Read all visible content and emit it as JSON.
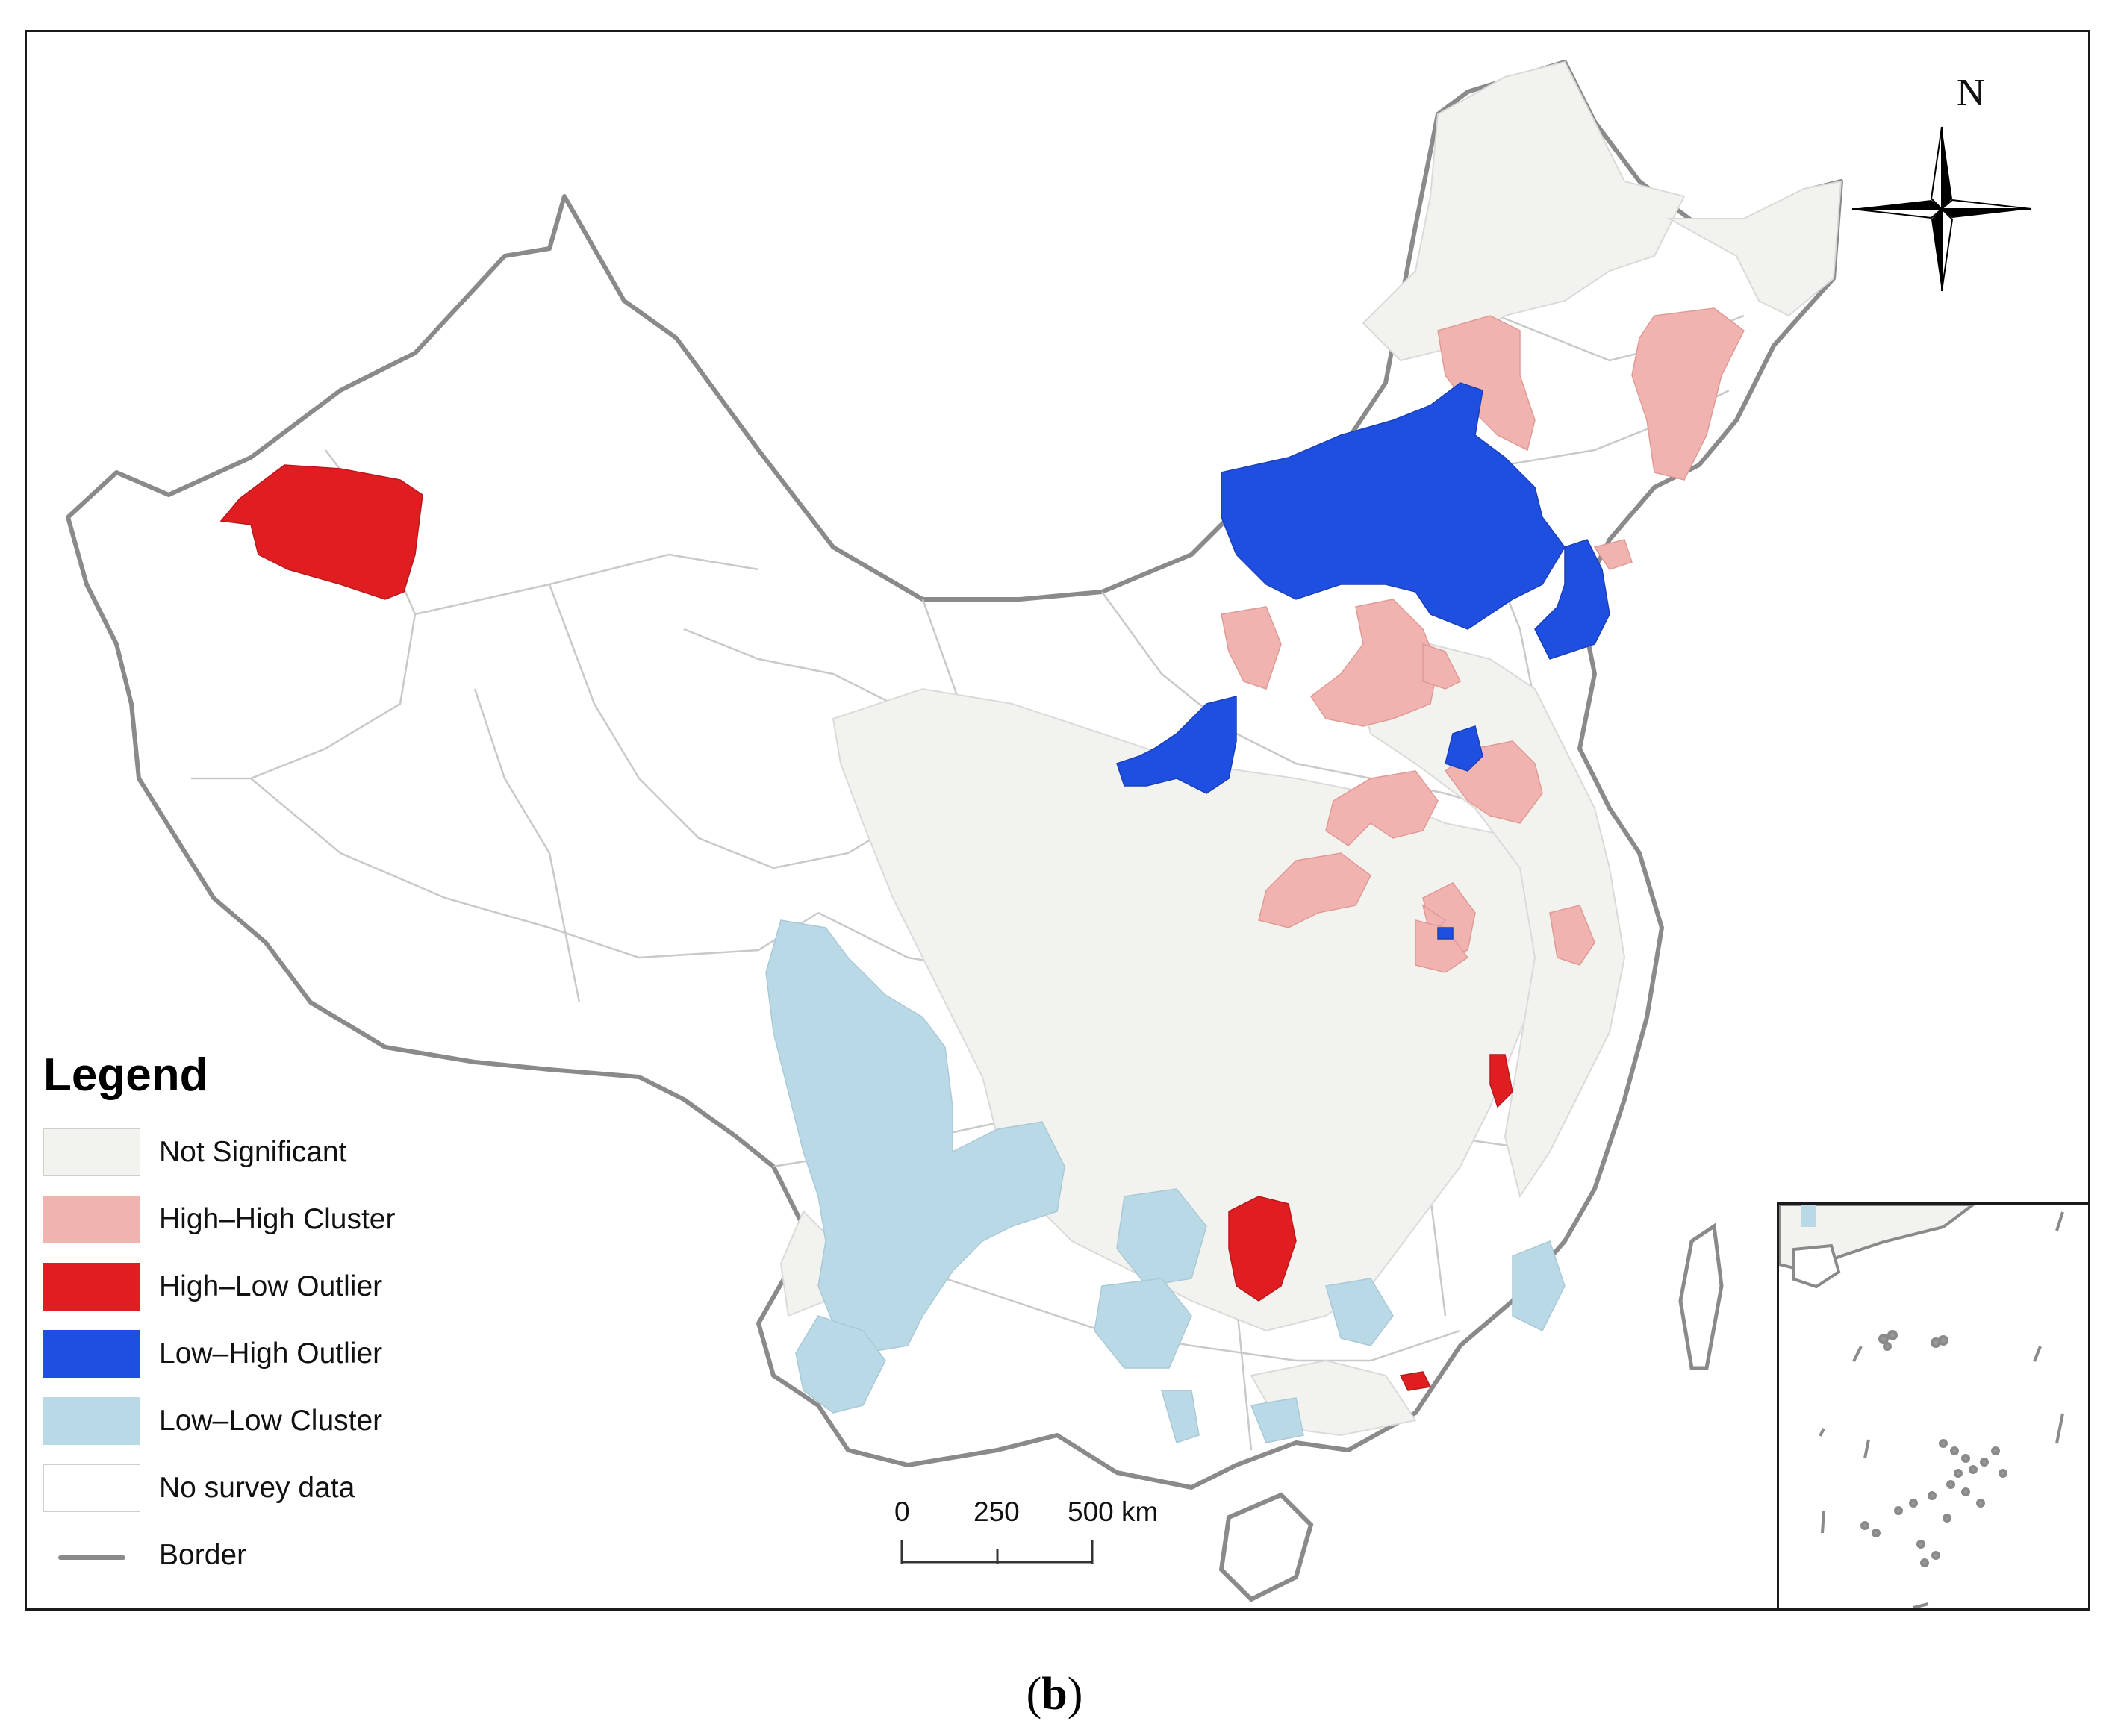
{
  "legend": {
    "title": "Legend",
    "items": [
      {
        "label": "Not Significant",
        "color": "#f2f3ee"
      },
      {
        "label": "High–High Cluster",
        "color": "#f1b3b0"
      },
      {
        "label": "High–Low Outlier",
        "color": "#e01e22"
      },
      {
        "label": "Low–High Outlier",
        "color": "#1f4fe0"
      },
      {
        "label": "Low–Low Cluster",
        "color": "#b9d9e6"
      },
      {
        "label": "No survey data",
        "color": "#ffffff"
      },
      {
        "label": "Border",
        "color": "#8a8a8a"
      }
    ]
  },
  "scale_bar": {
    "ticks": [
      "0",
      "250",
      "500 km"
    ]
  },
  "compass": {
    "north": "N"
  },
  "caption": {
    "label": "b"
  },
  "colors": {
    "border": "#8a8a8a",
    "internal_lines": "#c9c9c9",
    "frame": "#1a1a1a"
  }
}
